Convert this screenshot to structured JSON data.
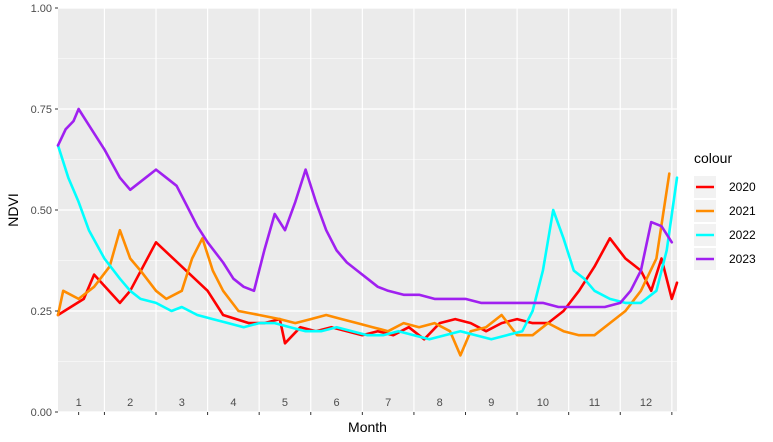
{
  "chart_data": {
    "type": "line",
    "title": "",
    "xlabel": "Month",
    "ylabel": "NDVI",
    "ylim": [
      0,
      1
    ],
    "xlim": [
      0.6,
      12.6
    ],
    "yticks": [
      0.0,
      0.25,
      0.5,
      0.75,
      1.0
    ],
    "ytick_labels": [
      "0.00",
      "0.25",
      "0.50",
      "0.75",
      "1.00"
    ],
    "month_labels": [
      "1",
      "2",
      "3",
      "4",
      "5",
      "6",
      "7",
      "8",
      "9",
      "10",
      "11",
      "12"
    ],
    "grid": true,
    "panel_background": "#ebebeb",
    "grid_color": "#ffffff",
    "legend": {
      "title": "colour",
      "position": "right"
    },
    "series": [
      {
        "name": "2020",
        "color": "#ff0000",
        "x": [
          0.6,
          1.1,
          1.3,
          1.8,
          2.0,
          2.5,
          3.0,
          3.5,
          3.8,
          4.3,
          4.6,
          4.9,
          5.0,
          5.3,
          5.6,
          5.9,
          6.2,
          6.5,
          6.8,
          7.1,
          7.4,
          7.7,
          8.0,
          8.3,
          8.6,
          8.9,
          9.2,
          9.5,
          9.8,
          10.1,
          10.4,
          10.7,
          11.0,
          11.3,
          11.6,
          11.9,
          12.1,
          12.3,
          12.5,
          12.6
        ],
        "y": [
          0.24,
          0.28,
          0.34,
          0.27,
          0.3,
          0.42,
          0.36,
          0.3,
          0.24,
          0.22,
          0.22,
          0.23,
          0.17,
          0.21,
          0.2,
          0.21,
          0.2,
          0.19,
          0.2,
          0.19,
          0.21,
          0.18,
          0.22,
          0.23,
          0.22,
          0.2,
          0.22,
          0.23,
          0.22,
          0.22,
          0.25,
          0.3,
          0.36,
          0.43,
          0.38,
          0.35,
          0.3,
          0.38,
          0.28,
          0.32
        ]
      },
      {
        "name": "2021",
        "color": "#ff8c00",
        "x": [
          0.6,
          0.7,
          1.0,
          1.3,
          1.6,
          1.8,
          2.0,
          2.2,
          2.5,
          2.7,
          3.0,
          3.2,
          3.4,
          3.6,
          3.8,
          4.1,
          4.5,
          4.9,
          5.2,
          5.5,
          5.8,
          6.1,
          6.4,
          6.7,
          7.0,
          7.3,
          7.6,
          7.9,
          8.2,
          8.4,
          8.6,
          8.9,
          9.2,
          9.5,
          9.8,
          10.1,
          10.4,
          10.7,
          11.0,
          11.3,
          11.6,
          11.9,
          12.2,
          12.45
        ],
        "y": [
          0.24,
          0.3,
          0.28,
          0.31,
          0.36,
          0.45,
          0.38,
          0.35,
          0.3,
          0.28,
          0.3,
          0.38,
          0.43,
          0.35,
          0.3,
          0.25,
          0.24,
          0.23,
          0.22,
          0.23,
          0.24,
          0.23,
          0.22,
          0.21,
          0.2,
          0.22,
          0.21,
          0.22,
          0.2,
          0.14,
          0.2,
          0.21,
          0.24,
          0.19,
          0.19,
          0.22,
          0.2,
          0.19,
          0.19,
          0.22,
          0.25,
          0.3,
          0.38,
          0.59
        ]
      },
      {
        "name": "2022",
        "color": "#00ffff",
        "x": [
          0.6,
          0.8,
          1.0,
          1.2,
          1.5,
          1.8,
          2.0,
          2.2,
          2.5,
          2.8,
          3.0,
          3.3,
          3.6,
          3.9,
          4.2,
          4.5,
          4.8,
          5.1,
          5.4,
          5.7,
          6.0,
          6.3,
          6.6,
          6.9,
          7.2,
          7.5,
          7.8,
          8.1,
          8.4,
          8.7,
          9.0,
          9.3,
          9.6,
          9.8,
          10.0,
          10.2,
          10.4,
          10.6,
          10.8,
          11.0,
          11.3,
          11.6,
          11.9,
          12.2,
          12.4,
          12.6
        ],
        "y": [
          0.66,
          0.58,
          0.52,
          0.45,
          0.38,
          0.33,
          0.3,
          0.28,
          0.27,
          0.25,
          0.26,
          0.24,
          0.23,
          0.22,
          0.21,
          0.22,
          0.22,
          0.21,
          0.2,
          0.2,
          0.21,
          0.2,
          0.19,
          0.19,
          0.2,
          0.19,
          0.18,
          0.19,
          0.2,
          0.19,
          0.18,
          0.19,
          0.2,
          0.25,
          0.35,
          0.5,
          0.43,
          0.35,
          0.33,
          0.3,
          0.28,
          0.27,
          0.27,
          0.3,
          0.4,
          0.58
        ]
      },
      {
        "name": "2023",
        "color": "#a020f0",
        "x": [
          0.6,
          0.75,
          0.9,
          1.0,
          1.2,
          1.5,
          1.8,
          2.0,
          2.3,
          2.5,
          2.7,
          2.9,
          3.1,
          3.3,
          3.5,
          3.8,
          4.0,
          4.2,
          4.4,
          4.6,
          4.8,
          5.0,
          5.2,
          5.4,
          5.6,
          5.8,
          6.0,
          6.2,
          6.4,
          6.6,
          6.8,
          7.0,
          7.3,
          7.6,
          7.9,
          8.2,
          8.5,
          8.8,
          9.1,
          9.4,
          9.7,
          10.0,
          10.3,
          10.6,
          10.9,
          11.2,
          11.5,
          11.7,
          11.9,
          12.1,
          12.3,
          12.5
        ],
        "y": [
          0.66,
          0.7,
          0.72,
          0.75,
          0.71,
          0.65,
          0.58,
          0.55,
          0.58,
          0.6,
          0.58,
          0.56,
          0.51,
          0.46,
          0.42,
          0.37,
          0.33,
          0.31,
          0.3,
          0.4,
          0.49,
          0.45,
          0.52,
          0.6,
          0.52,
          0.45,
          0.4,
          0.37,
          0.35,
          0.33,
          0.31,
          0.3,
          0.29,
          0.29,
          0.28,
          0.28,
          0.28,
          0.27,
          0.27,
          0.27,
          0.27,
          0.27,
          0.26,
          0.26,
          0.26,
          0.26,
          0.27,
          0.3,
          0.35,
          0.47,
          0.46,
          0.42
        ]
      }
    ]
  }
}
